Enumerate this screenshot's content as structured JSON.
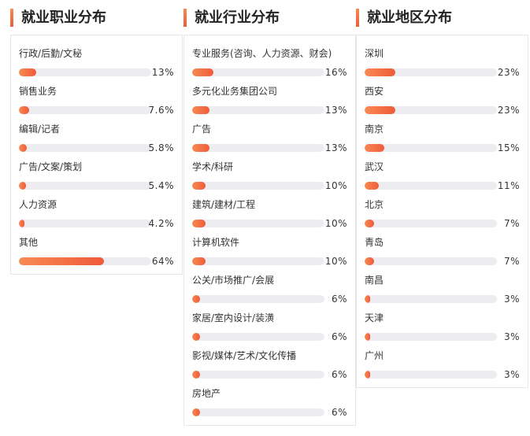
{
  "sections": [
    {
      "title": "就业职业分布",
      "items": [
        {
          "label": "行政/后勤/文秘",
          "percent": "13%",
          "value": 13
        },
        {
          "label": "销售业务",
          "percent": "7.6%",
          "value": 7.6
        },
        {
          "label": "编辑/记者",
          "percent": "5.8%",
          "value": 5.8
        },
        {
          "label": "广告/文案/策划",
          "percent": "5.4%",
          "value": 5.4
        },
        {
          "label": "人力资源",
          "percent": "4.2%",
          "value": 4.2
        },
        {
          "label": "其他",
          "percent": "64%",
          "value": 64
        }
      ]
    },
    {
      "title": "就业行业分布",
      "items": [
        {
          "label": "专业服务(咨询、人力资源、财会)",
          "percent": "16%",
          "value": 16
        },
        {
          "label": "多元化业务集团公司",
          "percent": "13%",
          "value": 13
        },
        {
          "label": "广告",
          "percent": "13%",
          "value": 13
        },
        {
          "label": "学术/科研",
          "percent": "10%",
          "value": 10
        },
        {
          "label": "建筑/建材/工程",
          "percent": "10%",
          "value": 10
        },
        {
          "label": "计算机软件",
          "percent": "10%",
          "value": 10
        },
        {
          "label": "公关/市场推广/会展",
          "percent": "6%",
          "value": 6
        },
        {
          "label": "家居/室内设计/装潢",
          "percent": "6%",
          "value": 6
        },
        {
          "label": "影视/媒体/艺术/文化传播",
          "percent": "6%",
          "value": 6
        },
        {
          "label": "房地产",
          "percent": "6%",
          "value": 6
        }
      ]
    },
    {
      "title": "就业地区分布",
      "items": [
        {
          "label": "深圳",
          "percent": "23%",
          "value": 23
        },
        {
          "label": "西安",
          "percent": "23%",
          "value": 23
        },
        {
          "label": "南京",
          "percent": "15%",
          "value": 15
        },
        {
          "label": "武汉",
          "percent": "11%",
          "value": 11
        },
        {
          "label": "北京",
          "percent": "7%",
          "value": 7
        },
        {
          "label": "青岛",
          "percent": "7%",
          "value": 7
        },
        {
          "label": "南昌",
          "percent": "3%",
          "value": 3
        },
        {
          "label": "天津",
          "percent": "3%",
          "value": 3
        },
        {
          "label": "广州",
          "percent": "3%",
          "value": 3
        }
      ]
    }
  ],
  "colors": {
    "accent_start": "#f78a52",
    "accent_end": "#ef5b3a",
    "track": "#ececf1",
    "border": "#e6e6e6"
  }
}
